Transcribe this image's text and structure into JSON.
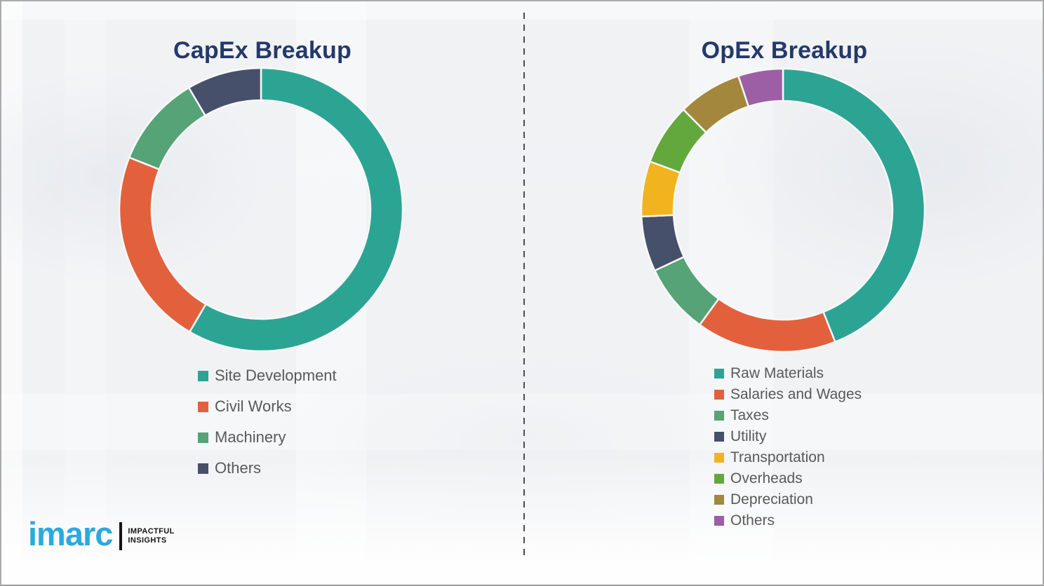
{
  "chart_data": [
    {
      "type": "pie",
      "donut": true,
      "start_angle": "top",
      "direction": "clockwise",
      "inner_radius_ratio": 0.77,
      "title": "CapEx Breakup",
      "labels": [
        "Site Development",
        "Civil Works",
        "Machinery",
        "Others"
      ],
      "values": [
        58.4,
        22.6,
        10.5,
        8.5
      ],
      "colors": [
        "#2ca493",
        "#e2613c",
        "#55a376",
        "#47506a"
      ],
      "legend_position": "below-left"
    },
    {
      "type": "pie",
      "donut": true,
      "start_angle": "top",
      "direction": "clockwise",
      "inner_radius_ratio": 0.77,
      "title": "OpEx Breakup",
      "labels": [
        "Raw Materials",
        "Salaries and Wages",
        "Taxes",
        "Utility",
        "Transportation",
        "Overheads",
        "Depreciation",
        "Others"
      ],
      "values": [
        44.0,
        16.0,
        8.0,
        6.3,
        6.3,
        7.0,
        7.3,
        5.1
      ],
      "colors": [
        "#2ca493",
        "#e2613c",
        "#55a376",
        "#47506a",
        "#f2b41e",
        "#63a83c",
        "#a3873d",
        "#9c5fa5"
      ],
      "legend_position": "below-left"
    }
  ],
  "logo": {
    "brand": "imarc",
    "tagline_line1": "IMPACTFUL",
    "tagline_line2": "INSIGHTS"
  },
  "colors": {
    "title_navy": "#24396b",
    "legend_text": "#595959",
    "brand_blue": "#2aa9e0",
    "background": "#f1f2f4",
    "divider": "#4c4c4c"
  }
}
